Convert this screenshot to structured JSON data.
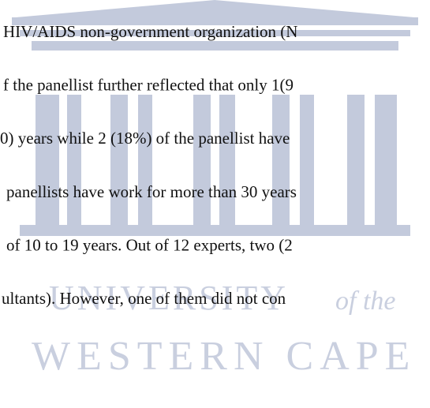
{
  "body": {
    "lines": [
      "HIV/AIDS non-government organization (N",
      "f the panellist further reflected that only 1(9",
      "0) years while 2 (18%) of the panellist have",
      "panellists have work for more than 30 years",
      "of 10 to 19 years. Out of 12 experts, two (2",
      "ultants). However, one of them did not con"
    ]
  },
  "watermark": {
    "university": "UNIVERSITY",
    "of_the": "of the",
    "western_cape": "WESTERN CAPE"
  }
}
